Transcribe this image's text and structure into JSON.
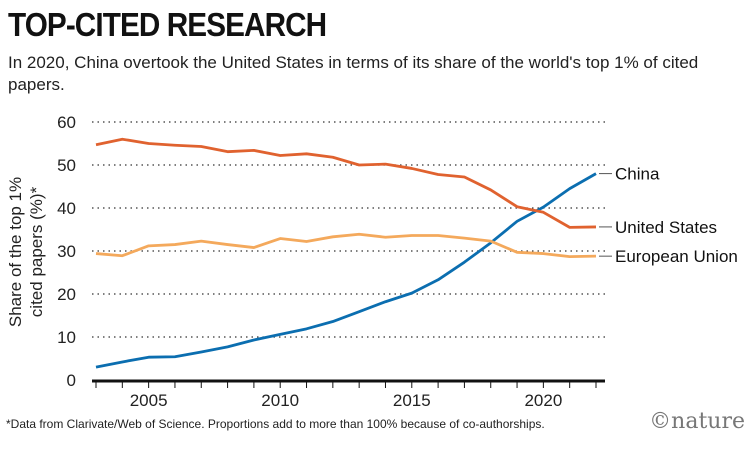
{
  "title": "TOP-CITED RESEARCH",
  "subtitle": "In 2020, China overtook the United States in terms of its share of the world's top 1% of cited papers.",
  "footnote": "*Data from Clarivate/Web of Science. Proportions add to more than 100% because of co-authorships.",
  "logo": "©nature",
  "chart_data": {
    "type": "line",
    "title": "TOP-CITED RESEARCH",
    "xlabel": "",
    "ylabel": "Share of the top 1% cited papers (%)*",
    "ylim": [
      0,
      60
    ],
    "xlim": [
      2003,
      2022
    ],
    "yticks": [
      "0",
      "10",
      "20",
      "30",
      "40",
      "50",
      "60"
    ],
    "xticks": [
      "2005",
      "2010",
      "2015",
      "2020"
    ],
    "grid": true,
    "x": [
      2003,
      2004,
      2005,
      2006,
      2007,
      2008,
      2009,
      2010,
      2011,
      2012,
      2013,
      2014,
      2015,
      2016,
      2017,
      2018,
      2019,
      2020,
      2021,
      2022
    ],
    "series": [
      {
        "name": "China",
        "color": "#0b6eb0",
        "values": [
          3.0,
          4.2,
          5.3,
          5.4,
          6.5,
          7.7,
          9.3,
          10.6,
          11.9,
          13.6,
          15.9,
          18.2,
          20.2,
          23.3,
          27.4,
          31.9,
          36.9,
          40.2,
          44.5,
          48.0
        ]
      },
      {
        "name": "United States",
        "color": "#e0622f",
        "values": [
          54.7,
          56.0,
          55.0,
          54.6,
          54.3,
          53.1,
          53.4,
          52.2,
          52.6,
          51.8,
          50.0,
          50.2,
          49.2,
          47.8,
          47.2,
          44.2,
          40.3,
          39.0,
          35.5,
          35.6
        ]
      },
      {
        "name": "European Union",
        "color": "#f4a95c",
        "values": [
          29.4,
          28.9,
          31.2,
          31.5,
          32.3,
          31.5,
          30.8,
          32.9,
          32.2,
          33.3,
          33.9,
          33.2,
          33.6,
          33.6,
          33.0,
          32.3,
          29.7,
          29.4,
          28.7,
          28.8
        ]
      }
    ]
  }
}
